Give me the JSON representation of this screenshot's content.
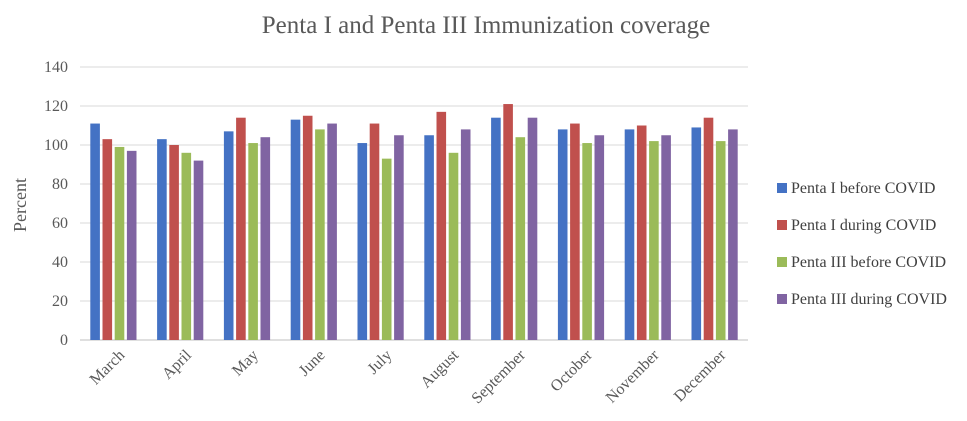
{
  "chart_data": {
    "type": "bar",
    "title": "Penta I and Penta III Immunization coverage",
    "xlabel": "",
    "ylabel": "Percent",
    "ylim": [
      0,
      140
    ],
    "yticks": [
      0,
      20,
      40,
      60,
      80,
      100,
      120,
      140
    ],
    "grid": true,
    "legend_position": "right",
    "categories": [
      "March",
      "April",
      "May",
      "June",
      "July",
      "August",
      "September",
      "October",
      "November",
      "December"
    ],
    "series": [
      {
        "name": "Penta I before COVID",
        "color": "#4472C4",
        "values": [
          111,
          103,
          107,
          113,
          101,
          105,
          114,
          108,
          108,
          109
        ]
      },
      {
        "name": "Penta I during COVID",
        "color": "#C0504D",
        "values": [
          103,
          100,
          114,
          115,
          111,
          117,
          121,
          111,
          110,
          114
        ]
      },
      {
        "name": "Penta III before COVID",
        "color": "#9BBB59",
        "values": [
          99,
          96,
          101,
          108,
          93,
          96,
          104,
          101,
          102,
          102
        ]
      },
      {
        "name": "Penta III during COVID",
        "color": "#8064A2",
        "values": [
          97,
          92,
          104,
          111,
          105,
          108,
          114,
          105,
          105,
          108
        ]
      }
    ]
  }
}
